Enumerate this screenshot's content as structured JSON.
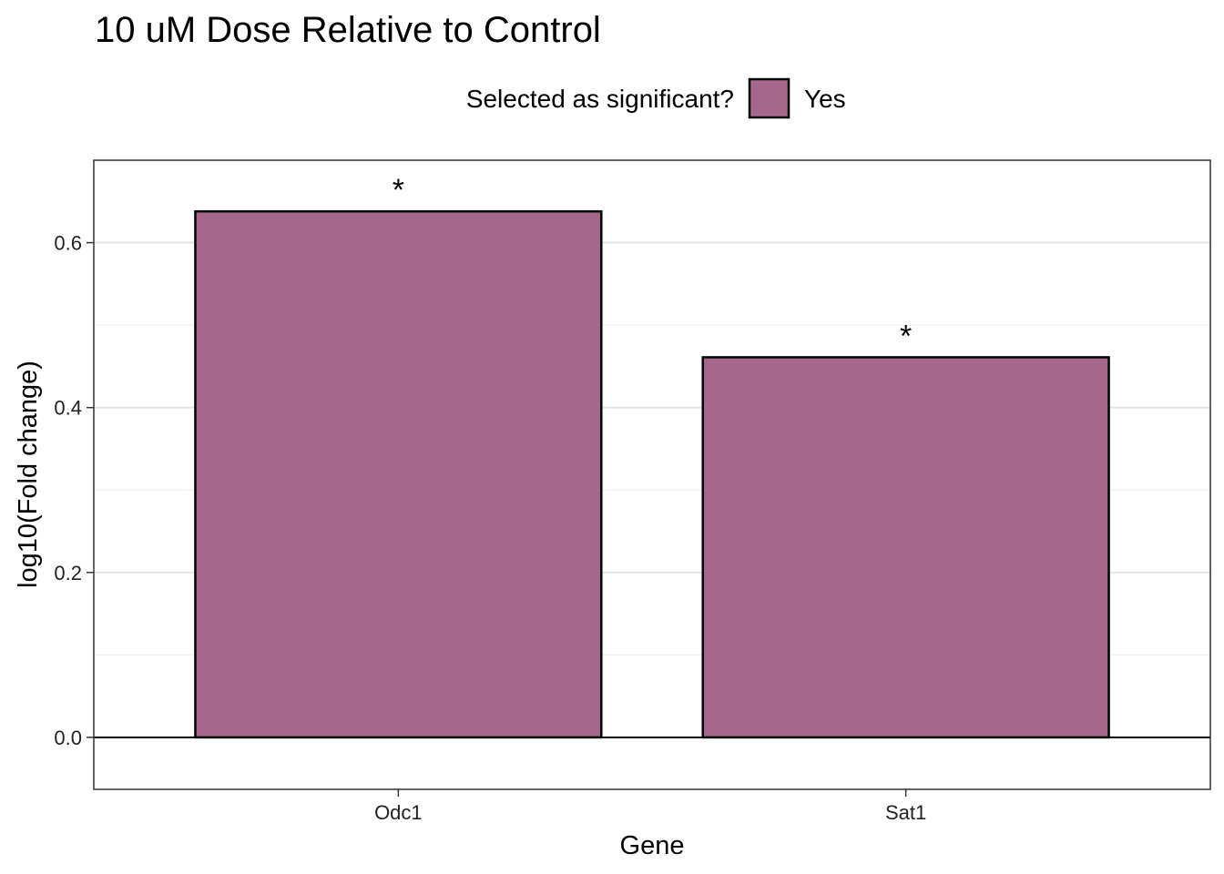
{
  "chart_data": {
    "type": "bar",
    "title": "10 uM Dose Relative to Control",
    "xlabel": "Gene",
    "ylabel": "log10(Fold change)",
    "categories": [
      "Odc1",
      "Sat1"
    ],
    "values": [
      0.638,
      0.461
    ],
    "annotations": [
      "*",
      "*"
    ],
    "ylim": [
      -0.063,
      0.7
    ],
    "yticks": [
      0.0,
      0.2,
      0.4,
      0.6
    ],
    "ytick_labels": [
      "0.0",
      "0.2",
      "0.4",
      "0.6"
    ],
    "grid": true,
    "legend": {
      "title": "Selected as significant?",
      "placement": "top",
      "entries": [
        {
          "label": "Yes",
          "color": "#a5688b"
        }
      ]
    },
    "bar_color": "#a5688b"
  }
}
